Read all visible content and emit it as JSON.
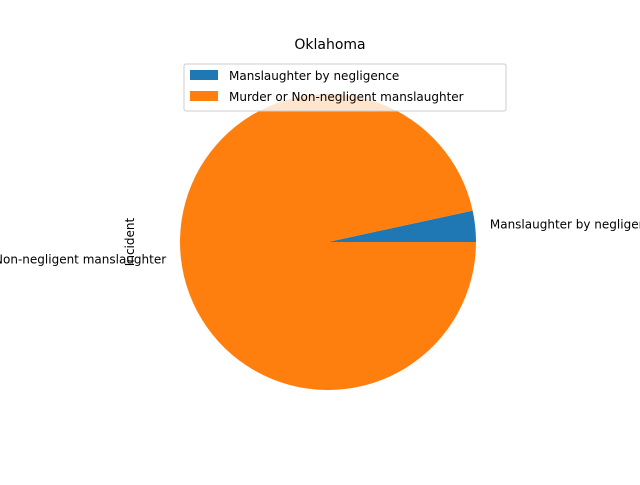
{
  "chart_data": {
    "type": "pie",
    "title": "Oklahoma",
    "ylabel": "Incident",
    "labels": [
      "Manslaughter by negligence",
      "Murder or Non-negligent manslaughter"
    ],
    "values": [
      3.4,
      96.6
    ],
    "colors": [
      "#1f77b4",
      "#ff7f0e"
    ],
    "legend_position": "top-center",
    "start_angle": 0,
    "direction": "counterclockwise"
  }
}
